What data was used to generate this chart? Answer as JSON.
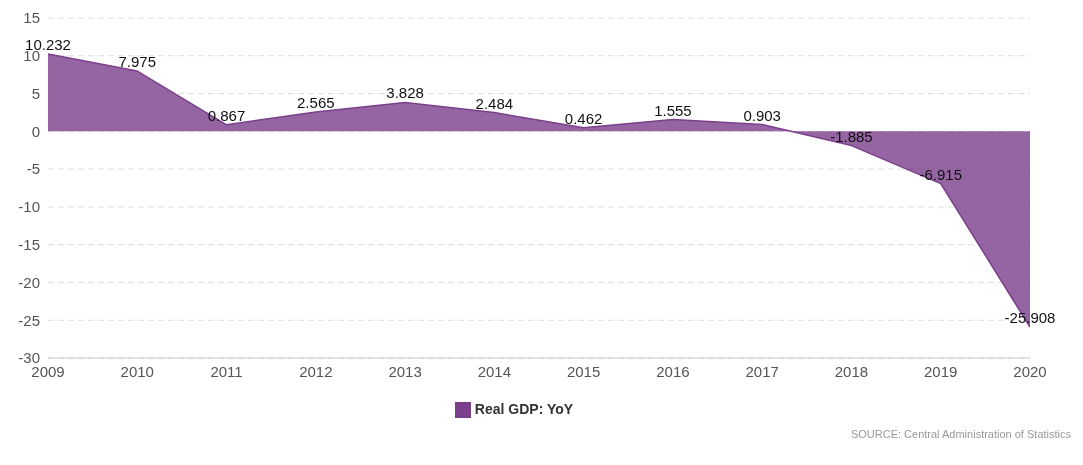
{
  "chart_data": {
    "type": "area",
    "categories": [
      "2009",
      "2010",
      "2011",
      "2012",
      "2013",
      "2014",
      "2015",
      "2016",
      "2017",
      "2018",
      "2019",
      "2020"
    ],
    "series": [
      {
        "name": "Real GDP: YoY",
        "color": "#7b3f8c",
        "values": [
          10.232,
          7.975,
          0.867,
          2.565,
          3.828,
          2.484,
          0.462,
          1.555,
          0.903,
          -1.885,
          -6.915,
          -25.908
        ]
      }
    ],
    "ylim": [
      -30,
      15
    ],
    "yticks": [
      -30,
      -25,
      -20,
      -15,
      -10,
      -5,
      0,
      5,
      10,
      15
    ],
    "grid": "y",
    "legend": "bottom",
    "data_labels": true,
    "annotations": [
      "SOURCE: Central Administration of Statistics"
    ]
  }
}
